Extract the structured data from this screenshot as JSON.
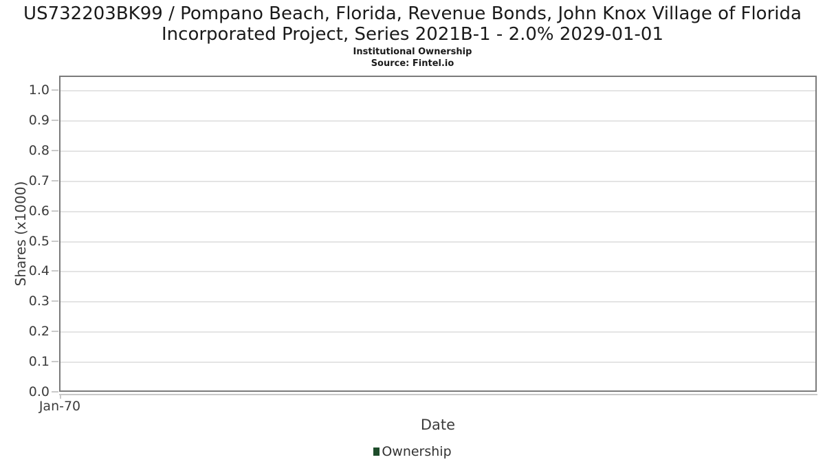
{
  "chart_data": {
    "type": "line",
    "title": "US732203BK99 / Pompano Beach, Florida, Revenue Bonds, John Knox Village of Florida Incorporated Project, Series 2021B-1 - 2.0% 2029-01-01",
    "subtitle": "Institutional Ownership",
    "source": "Source: Fintel.io",
    "xlabel": "Date",
    "ylabel": "Shares (x1000)",
    "xticks": [
      "Jan-70"
    ],
    "yticks": [
      "0.0",
      "0.1",
      "0.2",
      "0.3",
      "0.4",
      "0.5",
      "0.6",
      "0.7",
      "0.8",
      "0.9",
      "1.0"
    ],
    "ylim": [
      0,
      1.048
    ],
    "grid": "horizontal",
    "legend_position": "bottom",
    "series": [
      {
        "name": "Ownership",
        "color": "#1e4d2b",
        "x": [],
        "values": []
      }
    ]
  },
  "colors": {
    "background": "#ffffff",
    "title_text": "#1a1a1a",
    "axis_text": "#3c3c3c",
    "plot_border": "#7a7a7a",
    "gridline": "#e4e4e4",
    "axis_line": "#c9c9c9",
    "legend_marker": "#1e4d2b"
  }
}
